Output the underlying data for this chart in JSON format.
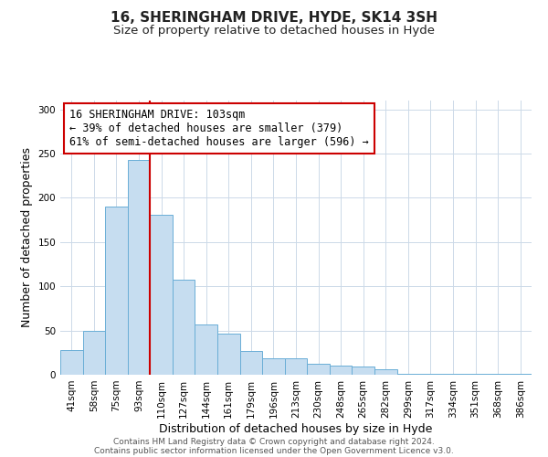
{
  "title": "16, SHERINGHAM DRIVE, HYDE, SK14 3SH",
  "subtitle": "Size of property relative to detached houses in Hyde",
  "xlabel": "Distribution of detached houses by size in Hyde",
  "ylabel": "Number of detached properties",
  "categories": [
    "41sqm",
    "58sqm",
    "75sqm",
    "93sqm",
    "110sqm",
    "127sqm",
    "144sqm",
    "161sqm",
    "179sqm",
    "196sqm",
    "213sqm",
    "230sqm",
    "248sqm",
    "265sqm",
    "282sqm",
    "299sqm",
    "317sqm",
    "334sqm",
    "351sqm",
    "368sqm",
    "386sqm"
  ],
  "values": [
    28,
    50,
    190,
    243,
    181,
    107,
    57,
    46,
    27,
    19,
    19,
    12,
    10,
    9,
    6,
    1,
    1,
    1,
    1,
    1,
    1
  ],
  "bar_color": "#c6ddf0",
  "bar_edge_color": "#6aaed6",
  "vline_x": 3.5,
  "vline_color": "#cc0000",
  "annotation_text": "16 SHERINGHAM DRIVE: 103sqm\n← 39% of detached houses are smaller (379)\n61% of semi-detached houses are larger (596) →",
  "annotation_box_color": "#ffffff",
  "annotation_box_edge_color": "#cc0000",
  "ylim": [
    0,
    310
  ],
  "yticks": [
    0,
    50,
    100,
    150,
    200,
    250,
    300
  ],
  "footer_line1": "Contains HM Land Registry data © Crown copyright and database right 2024.",
  "footer_line2": "Contains public sector information licensed under the Open Government Licence v3.0.",
  "background_color": "#ffffff",
  "grid_color": "#ccd9e8",
  "title_fontsize": 11,
  "subtitle_fontsize": 9.5,
  "axis_label_fontsize": 9,
  "tick_fontsize": 7.5,
  "annotation_fontsize": 8.5,
  "footer_fontsize": 6.5
}
